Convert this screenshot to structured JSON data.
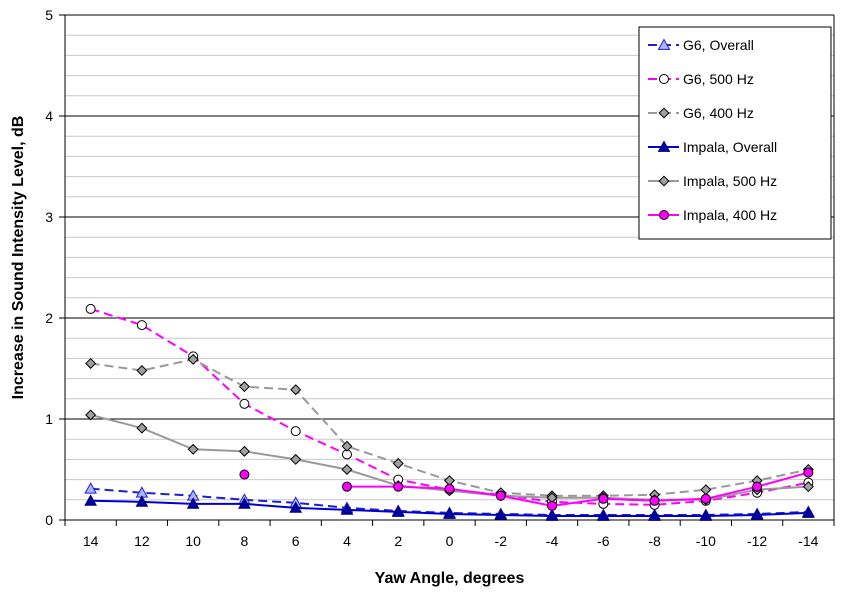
{
  "chart_data": {
    "type": "line",
    "xlabel": "Yaw Angle, degrees",
    "ylabel": "Increase in Sound Intensity Level, dB",
    "x": [
      14,
      12,
      10,
      8,
      6,
      4,
      2,
      0,
      -2,
      -4,
      -6,
      -8,
      -10,
      -12,
      -14
    ],
    "ylim": [
      0,
      5
    ],
    "yticks": [
      0,
      1,
      2,
      3,
      4,
      5
    ],
    "grid": "major-solid-minor-light",
    "legend_position": "top-right",
    "series": [
      {
        "name": "G6, Overall",
        "color": "#1f1fd8",
        "dash": true,
        "marker": "triangle-open",
        "values": [
          0.31,
          0.27,
          0.24,
          0.2,
          0.17,
          0.12,
          0.09,
          0.07,
          0.06,
          0.05,
          0.05,
          0.05,
          0.05,
          0.06,
          0.08
        ]
      },
      {
        "name": "G6, 500 Hz",
        "color": "#ff00ff",
        "dash": true,
        "marker": "circle-open",
        "values": [
          2.09,
          1.93,
          1.62,
          1.15,
          0.88,
          0.65,
          0.4,
          0.3,
          0.25,
          0.18,
          0.16,
          0.15,
          0.19,
          0.27,
          0.37
        ]
      },
      {
        "name": "G6, 400 Hz",
        "color": "#999999",
        "dash": true,
        "marker": "diamond-gray",
        "values": [
          1.55,
          1.48,
          1.59,
          1.32,
          1.29,
          0.73,
          0.56,
          0.39,
          0.27,
          0.24,
          0.24,
          0.25,
          0.3,
          0.39,
          0.5
        ]
      },
      {
        "name": "Impala, Overall",
        "color": "#0000cc",
        "dash": false,
        "marker": "triangle-filled",
        "values": [
          0.19,
          0.18,
          0.16,
          0.16,
          0.12,
          0.1,
          0.08,
          0.06,
          0.05,
          0.04,
          0.04,
          0.04,
          0.04,
          0.05,
          0.07
        ]
      },
      {
        "name": "Impala, 500 Hz",
        "color": "#999999",
        "dash": false,
        "marker": "diamond-gray",
        "values": [
          1.04,
          0.91,
          0.7,
          0.68,
          0.6,
          0.5,
          0.34,
          0.29,
          0.24,
          0.22,
          0.22,
          0.2,
          0.2,
          0.3,
          0.33
        ]
      },
      {
        "name": "Impala, 400 Hz",
        "color": "#ff00ff",
        "dash": false,
        "marker": "circle-filled",
        "values": [
          null,
          null,
          null,
          0.45,
          null,
          0.33,
          0.33,
          0.31,
          0.24,
          0.14,
          0.21,
          0.19,
          0.21,
          0.33,
          0.47
        ]
      }
    ]
  }
}
